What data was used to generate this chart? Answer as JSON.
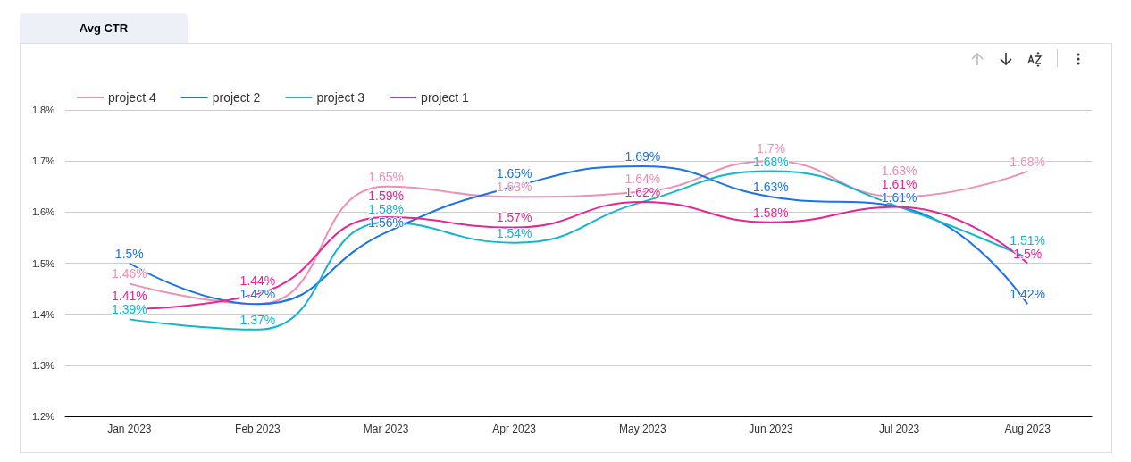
{
  "chart_data": {
    "type": "line",
    "title": "Avg CTR",
    "categories": [
      "Jan 2023",
      "Feb 2023",
      "Mar 2023",
      "Apr 2023",
      "May 2023",
      "Jun 2023",
      "Jul 2023",
      "Aug 2023"
    ],
    "series": [
      {
        "name": "project 4",
        "color": "#ee8fb5",
        "values": [
          1.46,
          1.42,
          1.65,
          1.63,
          1.64,
          1.7,
          1.63,
          1.68
        ],
        "value_labels": [
          "1.46%",
          null,
          "1.65%",
          "1.63%",
          "1.64%",
          "1.7%",
          "1.63%",
          "1.68%"
        ]
      },
      {
        "name": "project 2",
        "color": "#1a73e8",
        "values": [
          1.5,
          1.42,
          1.56,
          1.65,
          1.69,
          1.63,
          1.61,
          1.42
        ],
        "value_labels": [
          "1.5%",
          "1.42%",
          "1.56%",
          "1.65%",
          "1.69%",
          "1.63%",
          "1.61%",
          "1.42%"
        ]
      },
      {
        "name": "project 3",
        "color": "#12b5cb",
        "values": [
          1.39,
          1.37,
          1.58,
          1.54,
          1.62,
          1.68,
          1.61,
          1.51
        ],
        "value_labels": [
          "1.39%",
          "1.37%",
          "1.58%",
          "1.54%",
          null,
          "1.68%",
          null,
          "1.51%"
        ]
      },
      {
        "name": "project 1",
        "color": "#e52592",
        "values": [
          1.41,
          1.44,
          1.59,
          1.57,
          1.62,
          1.58,
          1.61,
          1.5
        ],
        "value_labels": [
          "1.41%",
          "1.44%",
          "1.59%",
          "1.57%",
          "1.62%",
          "1.58%",
          "1.61%",
          "1.5%"
        ]
      }
    ],
    "ylim": [
      1.2,
      1.8
    ],
    "yticks": [
      {
        "value": 1.2,
        "label": "1.2%"
      },
      {
        "value": 1.3,
        "label": "1.3%"
      },
      {
        "value": 1.4,
        "label": "1.4%"
      },
      {
        "value": 1.5,
        "label": "1.5%"
      },
      {
        "value": 1.6,
        "label": "1.6%"
      },
      {
        "value": 1.7,
        "label": "1.7%"
      },
      {
        "value": 1.8,
        "label": "1.8%"
      }
    ],
    "grid": "y",
    "legend": "top left",
    "marker": "none",
    "line_style": "solid"
  }
}
